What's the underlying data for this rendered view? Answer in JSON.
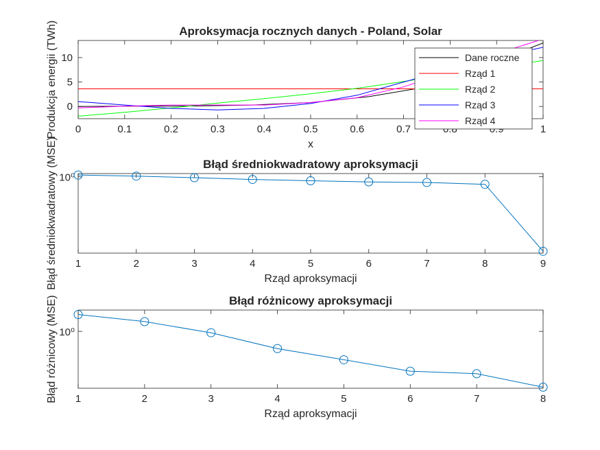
{
  "chart_data": [
    {
      "type": "line",
      "title": "Aproksymacja rocznych danych - Poland, Solar",
      "xlabel": "x",
      "ylabel": "Produkcja energii (TWh)",
      "xlim": [
        0,
        1
      ],
      "ylim": [
        -2.5,
        13.5
      ],
      "xticks": [
        0,
        0.1,
        0.2,
        0.3,
        0.4,
        0.5,
        0.6,
        0.7,
        0.8,
        0.9,
        1
      ],
      "xtick_labels": [
        "0",
        "0.1",
        "0.2",
        "0.3",
        "0.4",
        "0.5",
        "0.6",
        "0.7",
        "0.8",
        "0.9",
        "1"
      ],
      "yticks": [
        0,
        5,
        10
      ],
      "ytick_labels": [
        "0",
        "5",
        "10"
      ],
      "grid": false,
      "legend_position": "top-right",
      "series": [
        {
          "name": "Dane roczne",
          "color": "#000000",
          "x": [
            0,
            0.125,
            0.25,
            0.375,
            0.5,
            0.625,
            0.75,
            0.875,
            1
          ],
          "y": [
            0,
            0.05,
            0.1,
            0.3,
            0.8,
            2.0,
            4.0,
            8.3,
            13.0
          ]
        },
        {
          "name": "Rząd 1",
          "color": "#ff0000",
          "x": [
            0,
            1
          ],
          "y": [
            3.6,
            3.6
          ]
        },
        {
          "name": "Rząd 2",
          "color": "#00ff00",
          "x": [
            0,
            0.1,
            0.2,
            0.3,
            0.4,
            0.5,
            0.6,
            0.7,
            0.8,
            0.9,
            1
          ],
          "y": [
            -2.0,
            -1.2,
            -0.3,
            0.7,
            1.6,
            2.6,
            3.7,
            5.1,
            6.6,
            8.0,
            9.4
          ]
        },
        {
          "name": "Rząd 3",
          "color": "#0000ff",
          "x": [
            0,
            0.1,
            0.2,
            0.3,
            0.4,
            0.5,
            0.6,
            0.7,
            0.8,
            0.9,
            1
          ],
          "y": [
            1.0,
            0.3,
            -0.4,
            -0.7,
            -0.4,
            0.6,
            2.3,
            5.0,
            7.6,
            10.1,
            12.1
          ]
        },
        {
          "name": "Rząd 4",
          "color": "#ff00ff",
          "x": [
            0,
            0.1,
            0.2,
            0.3,
            0.4,
            0.5,
            0.6,
            0.7,
            0.8,
            0.9,
            1
          ],
          "y": [
            -0.3,
            0.05,
            0.3,
            0.3,
            0.3,
            0.8,
            1.8,
            4.0,
            7.2,
            10.8,
            13.8
          ]
        }
      ]
    },
    {
      "type": "line",
      "title": "Błąd średniokwadratowy aproksymacji",
      "xlabel": "Rząd aproksymacji",
      "ylabel": "Błąd średniokwadratowy (MSE)",
      "yscale": "log",
      "xlim": [
        1,
        9
      ],
      "xticks": [
        1,
        2,
        3,
        4,
        5,
        6,
        7,
        8,
        9
      ],
      "xtick_labels": [
        "1",
        "2",
        "3",
        "4",
        "5",
        "6",
        "7",
        "8",
        "9"
      ],
      "ytick_labels": [
        "10⁰"
      ],
      "marker": "circle",
      "color": "#0072bd",
      "series": [
        {
          "x": [
            1,
            2,
            3,
            4,
            5,
            6,
            7,
            8,
            9
          ],
          "y": [
            1.08,
            1.03,
            0.96,
            0.89,
            0.84,
            0.8,
            0.78,
            0.72,
            0.039
          ]
        }
      ]
    },
    {
      "type": "line",
      "title": "Błąd różnicowy aproksymacji",
      "xlabel": "Rząd aproksymacji",
      "ylabel": "Błąd różnicowy (MSE)",
      "yscale": "log",
      "xlim": [
        1,
        8
      ],
      "xticks": [
        1,
        2,
        3,
        4,
        5,
        6,
        7,
        8
      ],
      "xtick_labels": [
        "1",
        "2",
        "3",
        "4",
        "5",
        "6",
        "7",
        "8"
      ],
      "ytick_labels": [
        "10⁰"
      ],
      "marker": "circle",
      "color": "#0072bd",
      "series": [
        {
          "x": [
            1,
            2,
            3,
            4,
            5,
            6,
            7,
            8
          ],
          "y": [
            1.9,
            1.45,
            0.95,
            0.52,
            0.34,
            0.22,
            0.2,
            0.12
          ]
        }
      ]
    }
  ]
}
